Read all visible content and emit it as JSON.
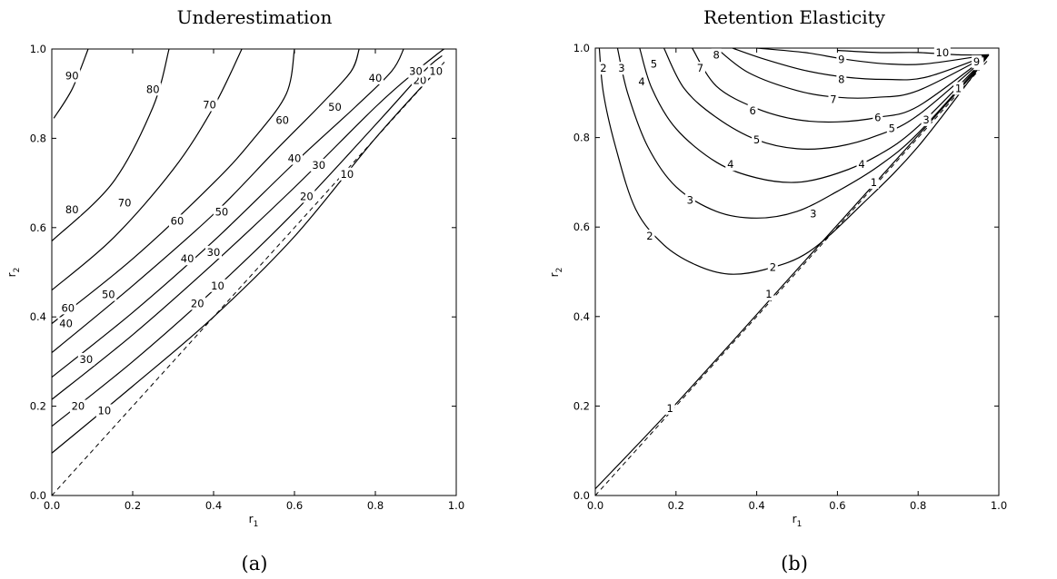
{
  "panels": [
    {
      "title": "Underestimation",
      "caption": "(a)",
      "xlabel": "r",
      "xlabel_sub": "1",
      "ylabel": "r",
      "ylabel_sub": "2",
      "xticks": [
        "0.0",
        "0.2",
        "0.4",
        "0.6",
        "0.8",
        "1.0"
      ],
      "yticks": [
        "0.0",
        "0.2",
        "0.4",
        "0.6",
        "0.8",
        "1.0"
      ]
    },
    {
      "title": "Retention Elasticity",
      "caption": "(b)",
      "xlabel": "r",
      "xlabel_sub": "1",
      "ylabel": "r",
      "ylabel_sub": "2",
      "xticks": [
        "0.0",
        "0.2",
        "0.4",
        "0.6",
        "0.8",
        "1.0"
      ],
      "yticks": [
        "0.0",
        "0.2",
        "0.4",
        "0.6",
        "0.8",
        "1.0"
      ]
    }
  ],
  "chart_data": [
    {
      "type": "contour",
      "title": "Underestimation",
      "xlabel": "r1",
      "ylabel": "r2",
      "xlim": [
        0,
        1
      ],
      "ylim": [
        0,
        1
      ],
      "grid": false,
      "diagonal": "dashed r2 = r1",
      "contours": [
        {
          "level": 10,
          "points": [
            [
              0.0,
              0.095
            ],
            [
              0.2,
              0.245
            ],
            [
              0.4,
              0.4
            ],
            [
              0.6,
              0.58
            ],
            [
              0.8,
              0.8
            ],
            [
              0.96,
              0.96
            ]
          ],
          "labels": [
            {
              "text": "10",
              "x": 0.13,
              "y": 0.19
            },
            {
              "text": "10",
              "x": 0.41,
              "y": 0.47
            },
            {
              "text": "10",
              "x": 0.73,
              "y": 0.72
            },
            {
              "text": "10",
              "x": 0.95,
              "y": 0.95
            }
          ]
        },
        {
          "level": 20,
          "points": [
            [
              0.0,
              0.155
            ],
            [
              0.2,
              0.3
            ],
            [
              0.4,
              0.46
            ],
            [
              0.6,
              0.635
            ],
            [
              0.8,
              0.83
            ],
            [
              0.92,
              0.95
            ],
            [
              0.965,
              0.985
            ]
          ],
          "labels": [
            {
              "text": "20",
              "x": 0.065,
              "y": 0.2
            },
            {
              "text": "20",
              "x": 0.36,
              "y": 0.43
            },
            {
              "text": "20",
              "x": 0.63,
              "y": 0.67
            },
            {
              "text": "20",
              "x": 0.91,
              "y": 0.93
            }
          ]
        },
        {
          "level": 30,
          "points": [
            [
              0.0,
              0.215
            ],
            [
              0.2,
              0.36
            ],
            [
              0.4,
              0.52
            ],
            [
              0.6,
              0.69
            ],
            [
              0.8,
              0.87
            ],
            [
              0.9,
              0.95
            ],
            [
              0.955,
              0.99
            ],
            [
              0.97,
              1.0
            ]
          ],
          "labels": [
            {
              "text": "30",
              "x": 0.085,
              "y": 0.305
            },
            {
              "text": "30",
              "x": 0.4,
              "y": 0.545
            },
            {
              "text": "30",
              "x": 0.66,
              "y": 0.74
            },
            {
              "text": "30",
              "x": 0.9,
              "y": 0.95
            }
          ]
        },
        {
          "level": 40,
          "points": [
            [
              0.0,
              0.265
            ],
            [
              0.2,
              0.41
            ],
            [
              0.4,
              0.57
            ],
            [
              0.6,
              0.745
            ],
            [
              0.75,
              0.87
            ],
            [
              0.84,
              0.95
            ],
            [
              0.87,
              1.0
            ]
          ],
          "labels": [
            {
              "text": "40",
              "x": 0.035,
              "y": 0.385
            },
            {
              "text": "40",
              "x": 0.335,
              "y": 0.53
            },
            {
              "text": "40",
              "x": 0.6,
              "y": 0.755
            },
            {
              "text": "40",
              "x": 0.8,
              "y": 0.935
            }
          ]
        },
        {
          "level": 50,
          "points": [
            [
              0.0,
              0.32
            ],
            [
              0.2,
              0.47
            ],
            [
              0.4,
              0.63
            ],
            [
              0.55,
              0.77
            ],
            [
              0.67,
              0.88
            ],
            [
              0.74,
              0.95
            ],
            [
              0.76,
              1.0
            ]
          ],
          "labels": [
            {
              "text": "50",
              "x": 0.14,
              "y": 0.45
            },
            {
              "text": "50",
              "x": 0.42,
              "y": 0.635
            },
            {
              "text": "50",
              "x": 0.7,
              "y": 0.87
            }
          ]
        },
        {
          "level": 60,
          "points": [
            [
              0.0,
              0.385
            ],
            [
              0.2,
              0.53
            ],
            [
              0.4,
              0.7
            ],
            [
              0.5,
              0.8
            ],
            [
              0.58,
              0.9
            ],
            [
              0.6,
              1.0
            ]
          ],
          "labels": [
            {
              "text": "60",
              "x": 0.04,
              "y": 0.42
            },
            {
              "text": "60",
              "x": 0.31,
              "y": 0.615
            },
            {
              "text": "60",
              "x": 0.57,
              "y": 0.84
            }
          ]
        },
        {
          "level": 70,
          "points": [
            [
              0.0,
              0.46
            ],
            [
              0.15,
              0.575
            ],
            [
              0.3,
              0.73
            ],
            [
              0.4,
              0.87
            ],
            [
              0.47,
              1.0
            ]
          ],
          "labels": [
            {
              "text": "70",
              "x": 0.18,
              "y": 0.655
            },
            {
              "text": "70",
              "x": 0.39,
              "y": 0.875
            }
          ]
        },
        {
          "level": 80,
          "points": [
            [
              0.0,
              0.57
            ],
            [
              0.15,
              0.7
            ],
            [
              0.25,
              0.87
            ],
            [
              0.29,
              1.0
            ]
          ],
          "labels": [
            {
              "text": "80",
              "x": 0.05,
              "y": 0.64
            },
            {
              "text": "80",
              "x": 0.25,
              "y": 0.91
            }
          ]
        },
        {
          "level": 90,
          "points": [
            [
              0.005,
              0.845
            ],
            [
              0.05,
              0.91
            ],
            [
              0.09,
              1.0
            ]
          ],
          "labels": [
            {
              "text": "90",
              "x": 0.05,
              "y": 0.94
            }
          ]
        }
      ]
    },
    {
      "type": "contour",
      "title": "Retention Elasticity",
      "xlabel": "r1",
      "ylabel": "r2",
      "xlim": [
        0,
        1
      ],
      "ylim": [
        0,
        1
      ],
      "grid": false,
      "diagonal": "dashed r2 = r1",
      "contours": [
        {
          "level": 1,
          "points": [
            [
              0.0,
              0.015
            ],
            [
              0.2,
              0.205
            ],
            [
              0.5,
              0.505
            ],
            [
              0.9,
              0.905
            ],
            [
              0.975,
              0.985
            ]
          ],
          "labels": [
            {
              "text": "1",
              "x": 0.185,
              "y": 0.195
            },
            {
              "text": "1",
              "x": 0.43,
              "y": 0.45
            },
            {
              "text": "1",
              "x": 0.69,
              "y": 0.7
            },
            {
              "text": "1",
              "x": 0.9,
              "y": 0.91
            }
          ]
        },
        {
          "level": 2,
          "points": [
            [
              0.01,
              1.0
            ],
            [
              0.02,
              0.9
            ],
            [
              0.05,
              0.78
            ],
            [
              0.1,
              0.64
            ],
            [
              0.17,
              0.56
            ],
            [
              0.25,
              0.515
            ],
            [
              0.33,
              0.495
            ],
            [
              0.42,
              0.505
            ],
            [
              0.53,
              0.545
            ],
            [
              0.66,
              0.65
            ],
            [
              0.8,
              0.78
            ],
            [
              0.975,
              0.985
            ]
          ],
          "labels": [
            {
              "text": "2",
              "x": 0.02,
              "y": 0.955
            },
            {
              "text": "2",
              "x": 0.135,
              "y": 0.58
            },
            {
              "text": "2",
              "x": 0.44,
              "y": 0.51
            },
            {
              "text": "2",
              "x": 0.95,
              "y": 0.965
            }
          ]
        },
        {
          "level": 3,
          "points": [
            [
              0.055,
              1.0
            ],
            [
              0.08,
              0.9
            ],
            [
              0.13,
              0.78
            ],
            [
              0.2,
              0.69
            ],
            [
              0.3,
              0.635
            ],
            [
              0.4,
              0.62
            ],
            [
              0.5,
              0.635
            ],
            [
              0.6,
              0.68
            ],
            [
              0.7,
              0.735
            ],
            [
              0.8,
              0.81
            ],
            [
              0.975,
              0.985
            ]
          ],
          "labels": [
            {
              "text": "3",
              "x": 0.065,
              "y": 0.955
            },
            {
              "text": "3",
              "x": 0.235,
              "y": 0.66
            },
            {
              "text": "3",
              "x": 0.54,
              "y": 0.63
            },
            {
              "text": "3",
              "x": 0.82,
              "y": 0.84
            }
          ]
        },
        {
          "level": 4,
          "points": [
            [
              0.11,
              1.0
            ],
            [
              0.14,
              0.91
            ],
            [
              0.2,
              0.82
            ],
            [
              0.3,
              0.745
            ],
            [
              0.4,
              0.71
            ],
            [
              0.5,
              0.7
            ],
            [
              0.6,
              0.72
            ],
            [
              0.7,
              0.76
            ],
            [
              0.8,
              0.825
            ],
            [
              0.975,
              0.985
            ]
          ],
          "labels": [
            {
              "text": "4",
              "x": 0.115,
              "y": 0.925
            },
            {
              "text": "4",
              "x": 0.335,
              "y": 0.74
            },
            {
              "text": "4",
              "x": 0.66,
              "y": 0.74
            }
          ]
        },
        {
          "level": 5,
          "points": [
            [
              0.17,
              1.0
            ],
            [
              0.22,
              0.91
            ],
            [
              0.3,
              0.845
            ],
            [
              0.4,
              0.795
            ],
            [
              0.5,
              0.775
            ],
            [
              0.6,
              0.78
            ],
            [
              0.7,
              0.805
            ],
            [
              0.8,
              0.85
            ],
            [
              0.975,
              0.985
            ]
          ],
          "labels": [
            {
              "text": "5",
              "x": 0.145,
              "y": 0.965
            },
            {
              "text": "5",
              "x": 0.4,
              "y": 0.795
            },
            {
              "text": "5",
              "x": 0.735,
              "y": 0.82
            }
          ]
        },
        {
          "level": 6,
          "points": [
            [
              0.24,
              1.0
            ],
            [
              0.3,
              0.915
            ],
            [
              0.4,
              0.865
            ],
            [
              0.5,
              0.84
            ],
            [
              0.6,
              0.835
            ],
            [
              0.7,
              0.845
            ],
            [
              0.8,
              0.87
            ],
            [
              0.975,
              0.985
            ]
          ],
          "labels": [
            {
              "text": "6",
              "x": 0.39,
              "y": 0.86
            },
            {
              "text": "6",
              "x": 0.7,
              "y": 0.845
            }
          ]
        },
        {
          "level": 7,
          "points": [
            [
              0.3,
              1.0
            ],
            [
              0.38,
              0.945
            ],
            [
              0.5,
              0.905
            ],
            [
              0.6,
              0.89
            ],
            [
              0.7,
              0.89
            ],
            [
              0.8,
              0.905
            ],
            [
              0.975,
              0.985
            ]
          ],
          "labels": [
            {
              "text": "7",
              "x": 0.26,
              "y": 0.955
            },
            {
              "text": "7",
              "x": 0.59,
              "y": 0.885
            }
          ]
        },
        {
          "level": 8,
          "points": [
            [
              0.34,
              1.0
            ],
            [
              0.42,
              0.975
            ],
            [
              0.52,
              0.95
            ],
            [
              0.62,
              0.935
            ],
            [
              0.72,
              0.93
            ],
            [
              0.82,
              0.935
            ],
            [
              0.975,
              0.985
            ]
          ],
          "labels": [
            {
              "text": "8",
              "x": 0.3,
              "y": 0.985
            },
            {
              "text": "8",
              "x": 0.61,
              "y": 0.93
            }
          ]
        },
        {
          "level": 9,
          "points": [
            [
              0.4,
              1.0
            ],
            [
              0.52,
              0.99
            ],
            [
              0.62,
              0.975
            ],
            [
              0.72,
              0.965
            ],
            [
              0.82,
              0.965
            ],
            [
              0.975,
              0.985
            ]
          ],
          "labels": [
            {
              "text": "9",
              "x": 0.61,
              "y": 0.975
            },
            {
              "text": "9",
              "x": 0.945,
              "y": 0.97
            }
          ]
        },
        {
          "level": 10,
          "points": [
            [
              0.6,
              0.995
            ],
            [
              0.7,
              0.99
            ],
            [
              0.8,
              0.99
            ],
            [
              0.9,
              0.985
            ],
            [
              0.975,
              0.985
            ]
          ],
          "labels": [
            {
              "text": "10",
              "x": 0.86,
              "y": 0.99
            }
          ]
        }
      ]
    }
  ]
}
